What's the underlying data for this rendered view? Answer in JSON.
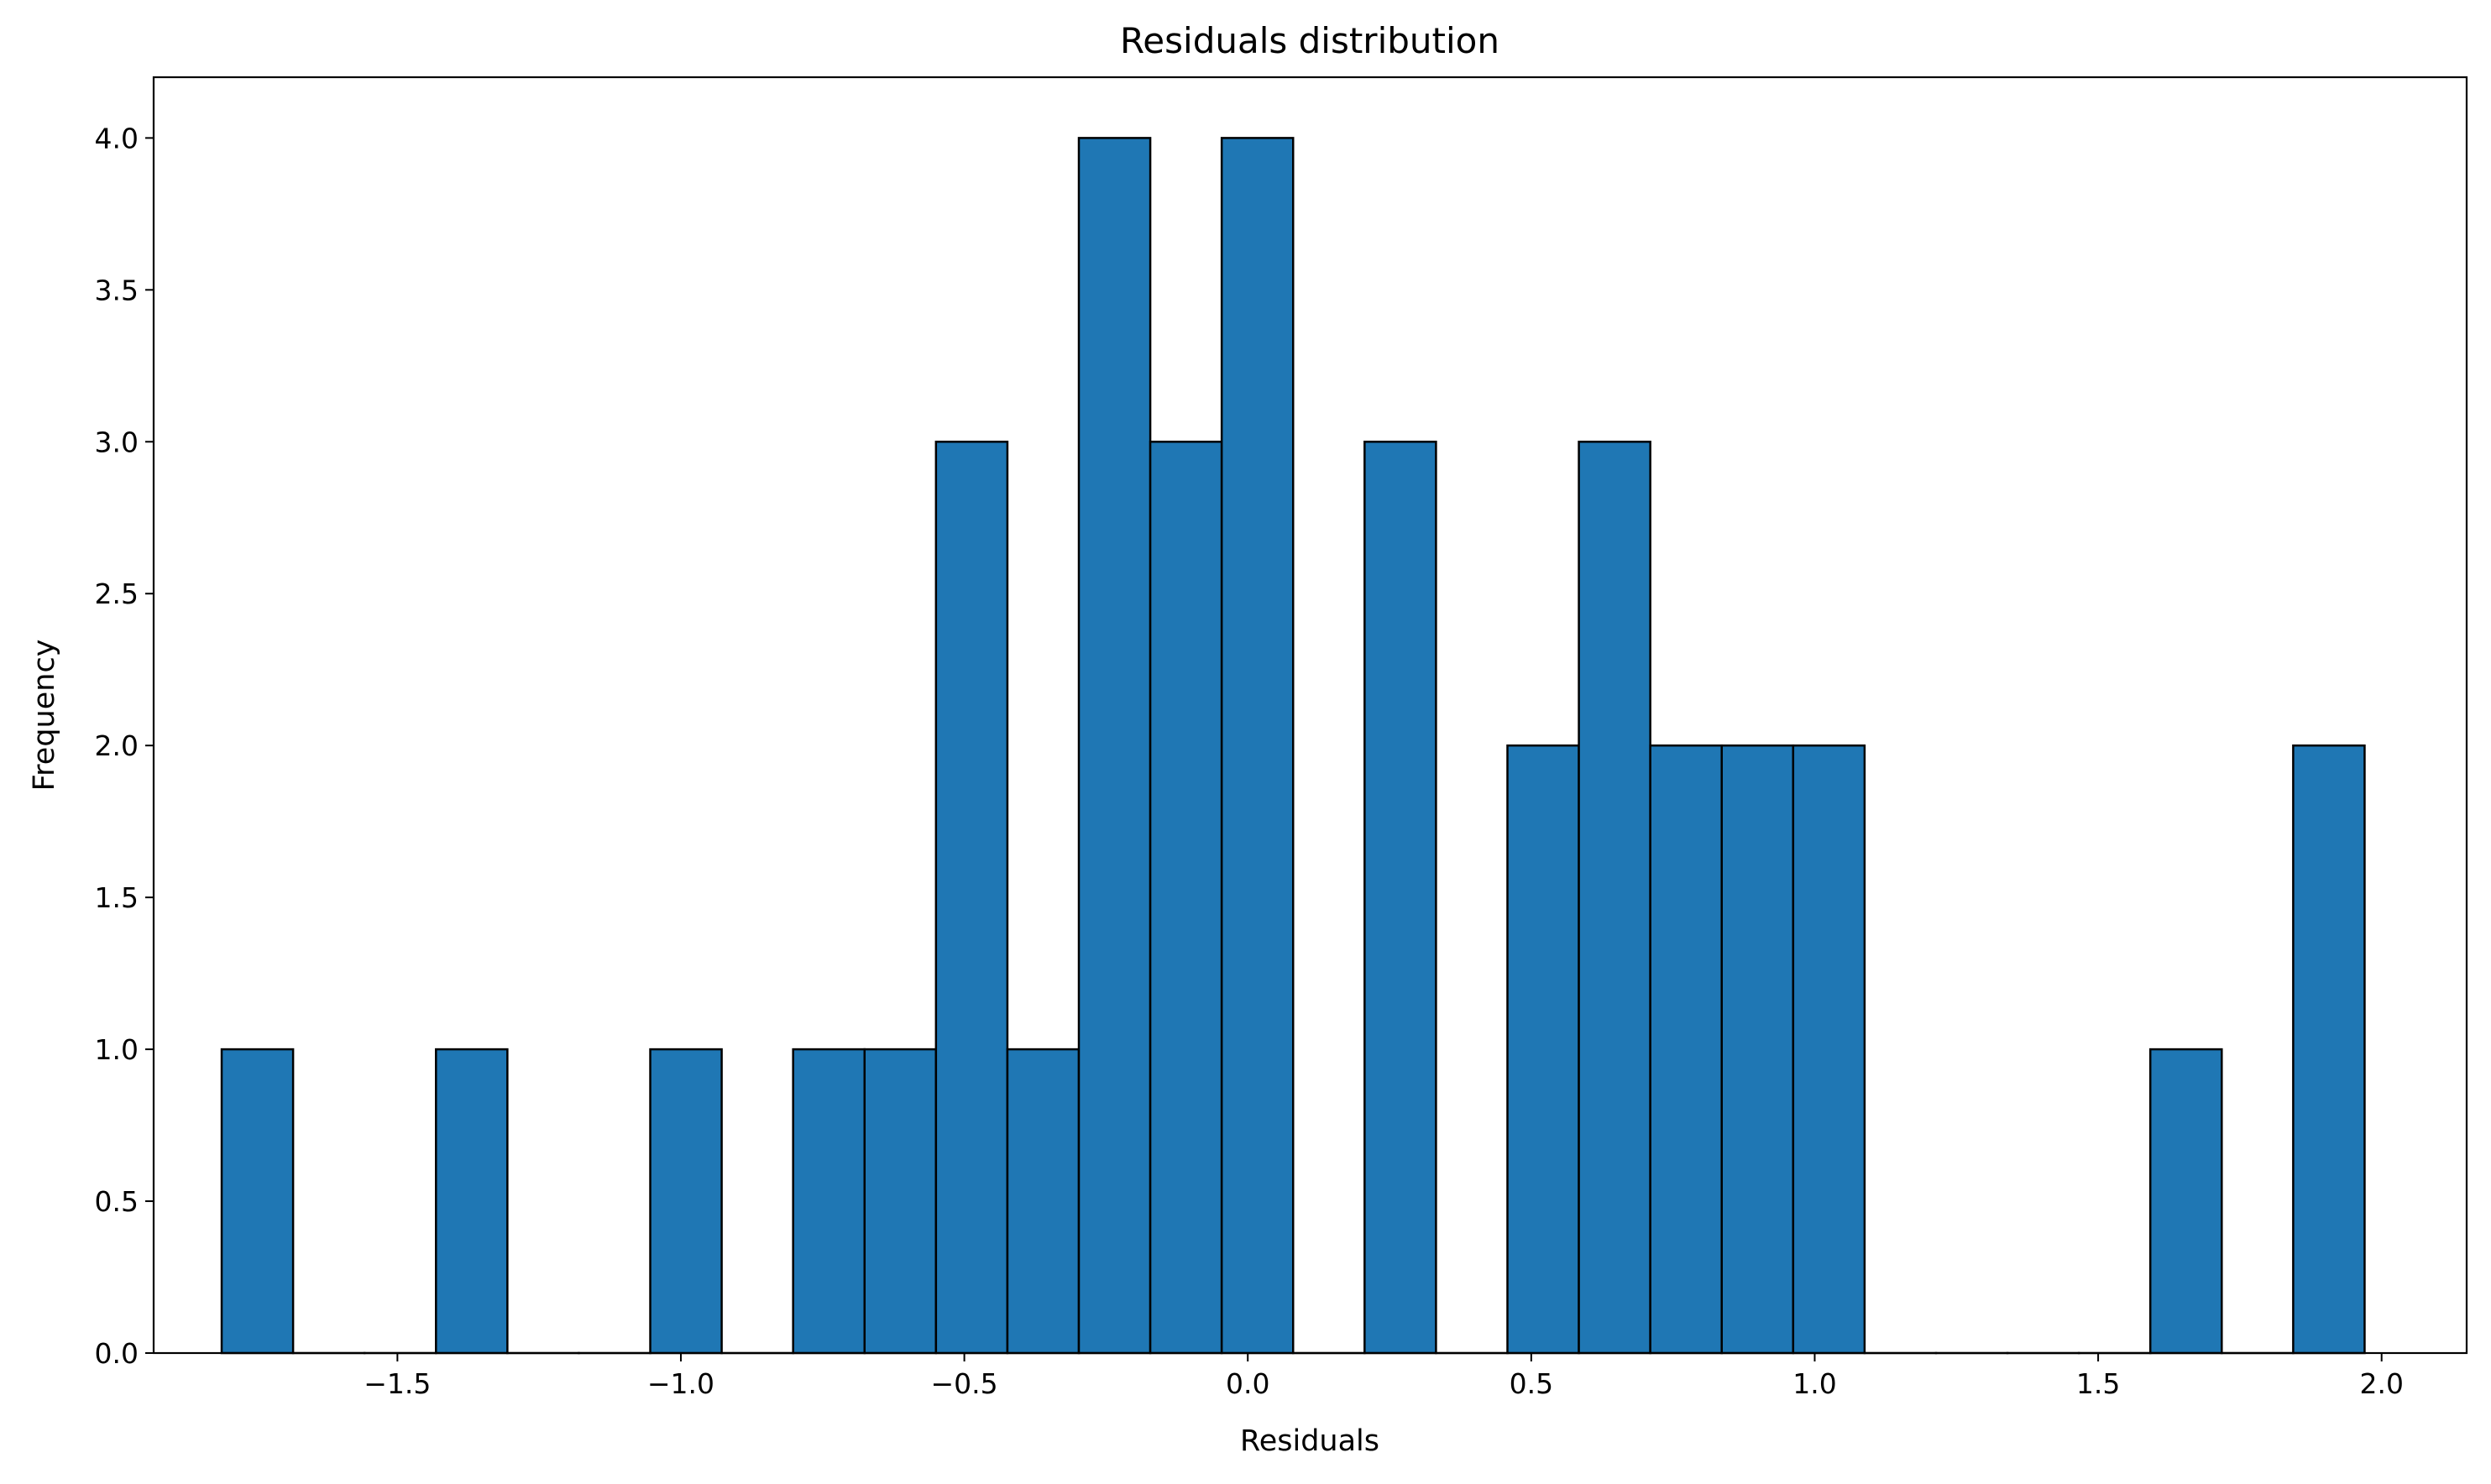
{
  "chart_data": {
    "type": "bar",
    "title": "Residuals distribution",
    "xlabel": "Residuals",
    "ylabel": "Frequency",
    "xlim": [
      -1.93,
      2.15
    ],
    "ylim": [
      0,
      4.2
    ],
    "xticks": [
      {
        "value": -1.5,
        "label": "−1.5"
      },
      {
        "value": -1.0,
        "label": "−1.0"
      },
      {
        "value": -0.5,
        "label": "−0.5"
      },
      {
        "value": 0.0,
        "label": "0.0"
      },
      {
        "value": 0.5,
        "label": "0.5"
      },
      {
        "value": 1.0,
        "label": "1.0"
      },
      {
        "value": 1.5,
        "label": "1.5"
      },
      {
        "value": 2.0,
        "label": "2.0"
      }
    ],
    "yticks": [
      {
        "value": 0.0,
        "label": "0.0"
      },
      {
        "value": 0.5,
        "label": "0.5"
      },
      {
        "value": 1.0,
        "label": "1.0"
      },
      {
        "value": 1.5,
        "label": "1.5"
      },
      {
        "value": 2.0,
        "label": "2.0"
      },
      {
        "value": 2.5,
        "label": "2.5"
      },
      {
        "value": 3.0,
        "label": "3.0"
      },
      {
        "value": 3.5,
        "label": "3.5"
      },
      {
        "value": 4.0,
        "label": "4.0"
      }
    ],
    "bin_edges": [
      -1.81,
      -1.684,
      -1.558,
      -1.432,
      -1.306,
      -1.18,
      -1.054,
      -0.928,
      -0.802,
      -0.676,
      -0.55,
      -0.424,
      -0.298,
      -0.172,
      -0.046,
      0.08,
      0.206,
      0.332,
      0.458,
      0.584,
      0.71,
      0.836,
      0.962,
      1.088,
      1.214,
      1.34,
      1.466,
      1.592,
      1.718,
      1.844,
      1.97
    ],
    "counts": [
      1,
      0,
      0,
      1,
      0,
      0,
      1,
      0,
      1,
      1,
      3,
      1,
      4,
      3,
      4,
      0,
      3,
      0,
      2,
      3,
      2,
      2,
      2,
      0,
      0,
      0,
      0,
      1,
      0,
      2
    ],
    "bar_color": "#1f77b4",
    "edge_color": "#000000",
    "grid": false
  }
}
